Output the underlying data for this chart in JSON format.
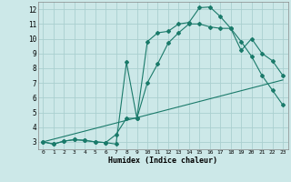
{
  "xlabel": "Humidex (Indice chaleur)",
  "background_color": "#cce8e8",
  "grid_color": "#aacfcf",
  "line_color": "#1a7a6a",
  "xlim": [
    -0.5,
    23.5
  ],
  "ylim": [
    2.5,
    12.5
  ],
  "xticks": [
    0,
    1,
    2,
    3,
    4,
    5,
    6,
    7,
    8,
    9,
    10,
    11,
    12,
    13,
    14,
    15,
    16,
    17,
    18,
    19,
    20,
    21,
    22,
    23
  ],
  "yticks": [
    3,
    4,
    5,
    6,
    7,
    8,
    9,
    10,
    11,
    12
  ],
  "line1_x": [
    0,
    1,
    2,
    3,
    4,
    5,
    6,
    7,
    8,
    9,
    10,
    11,
    12,
    13,
    14,
    15,
    16,
    17,
    18,
    19,
    20,
    21,
    22,
    23
  ],
  "line1_y": [
    3.0,
    2.85,
    3.05,
    3.15,
    3.1,
    3.0,
    2.95,
    2.85,
    8.4,
    4.6,
    9.8,
    10.4,
    10.5,
    11.0,
    11.1,
    12.1,
    12.15,
    11.5,
    10.7,
    9.2,
    10.0,
    9.0,
    8.5,
    7.5
  ],
  "line2_x": [
    0,
    1,
    2,
    3,
    4,
    5,
    6,
    7,
    8,
    9,
    10,
    11,
    12,
    13,
    14,
    15,
    16,
    17,
    18,
    19,
    20,
    21,
    22,
    23
  ],
  "line2_y": [
    3.0,
    2.85,
    3.05,
    3.15,
    3.1,
    3.0,
    2.95,
    3.5,
    4.6,
    4.6,
    7.0,
    8.3,
    9.7,
    10.4,
    11.0,
    11.0,
    10.8,
    10.7,
    10.7,
    9.8,
    8.8,
    7.5,
    6.5,
    5.5
  ],
  "line3_x": [
    0,
    23
  ],
  "line3_y": [
    3.0,
    7.2
  ]
}
